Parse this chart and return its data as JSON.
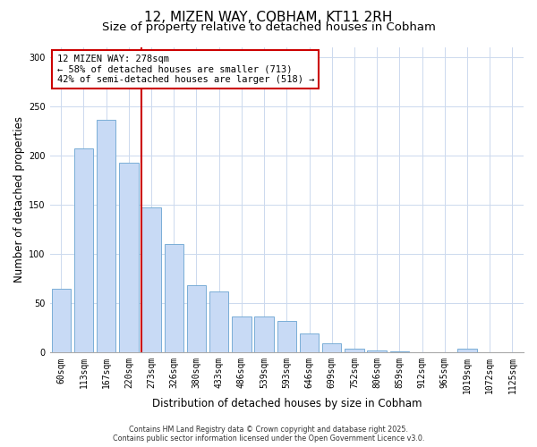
{
  "title": "12, MIZEN WAY, COBHAM, KT11 2RH",
  "subtitle": "Size of property relative to detached houses in Cobham",
  "xlabel": "Distribution of detached houses by size in Cobham",
  "ylabel": "Number of detached properties",
  "bar_labels": [
    "60sqm",
    "113sqm",
    "167sqm",
    "220sqm",
    "273sqm",
    "326sqm",
    "380sqm",
    "433sqm",
    "486sqm",
    "539sqm",
    "593sqm",
    "646sqm",
    "699sqm",
    "752sqm",
    "806sqm",
    "859sqm",
    "912sqm",
    "965sqm",
    "1019sqm",
    "1072sqm",
    "1125sqm"
  ],
  "bar_values": [
    65,
    207,
    236,
    193,
    147,
    110,
    68,
    62,
    37,
    37,
    32,
    19,
    9,
    4,
    2,
    1,
    0,
    0,
    4,
    0,
    0
  ],
  "bar_color": "#c8daf5",
  "bar_edge_color": "#7aaed6",
  "annotation_text_line1": "12 MIZEN WAY: 278sqm",
  "annotation_text_line2": "← 58% of detached houses are smaller (713)",
  "annotation_text_line3": "42% of semi-detached houses are larger (518) →",
  "red_line_color": "#cc0000",
  "annotation_box_edge": "#cc0000",
  "footer_line1": "Contains HM Land Registry data © Crown copyright and database right 2025.",
  "footer_line2": "Contains public sector information licensed under the Open Government Licence v3.0.",
  "ylim": [
    0,
    310
  ],
  "yticks": [
    0,
    50,
    100,
    150,
    200,
    250,
    300
  ],
  "red_line_bar_index": 4,
  "bar_width": 0.85,
  "title_fontsize": 11,
  "subtitle_fontsize": 9.5,
  "axis_label_fontsize": 8.5,
  "tick_fontsize": 7,
  "annotation_fontsize": 7.5,
  "footer_fontsize": 5.8
}
